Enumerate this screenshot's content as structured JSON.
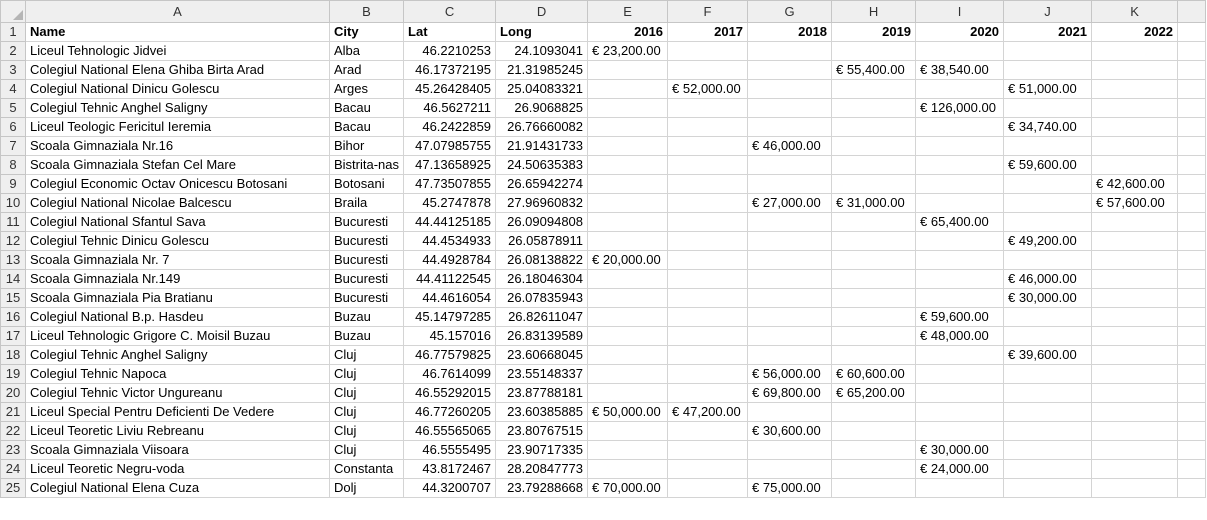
{
  "columns": [
    "A",
    "B",
    "C",
    "D",
    "E",
    "F",
    "G",
    "H",
    "I",
    "J",
    "K"
  ],
  "header_row": {
    "number": "1",
    "cells": [
      "Name",
      "City",
      "Lat",
      "Long",
      "2016",
      "2017",
      "2018",
      "2019",
      "2020",
      "2021",
      "2022"
    ]
  },
  "rows": [
    {
      "n": "2",
      "name": "Liceul Tehnologic Jidvei",
      "city": "Alba",
      "lat": "46.2210253",
      "long": "24.1093041",
      "y2016": "€ 23,200.00",
      "y2017": "",
      "y2018": "",
      "y2019": "",
      "y2020": "",
      "y2021": "",
      "y2022": ""
    },
    {
      "n": "3",
      "name": "Colegiul National Elena Ghiba Birta Arad",
      "city": "Arad",
      "lat": "46.17372195",
      "long": "21.31985245",
      "y2016": "",
      "y2017": "",
      "y2018": "",
      "y2019": "€ 55,400.00",
      "y2020": "€  38,540.00",
      "y2021": "",
      "y2022": ""
    },
    {
      "n": "4",
      "name": "Colegiul National Dinicu Golescu",
      "city": "Arges",
      "lat": "45.26428405",
      "long": "25.04083321",
      "y2016": "",
      "y2017": "€ 52,000.00",
      "y2018": "",
      "y2019": "",
      "y2020": "",
      "y2021": "€  51,000.00",
      "y2022": ""
    },
    {
      "n": "5",
      "name": "Colegiul Tehnic Anghel Saligny",
      "city": "Bacau",
      "lat": "46.5627211",
      "long": "26.9068825",
      "y2016": "",
      "y2017": "",
      "y2018": "",
      "y2019": "",
      "y2020": "€ 126,000.00",
      "y2021": "",
      "y2022": ""
    },
    {
      "n": "6",
      "name": "Liceul Teologic Fericitul Ieremia",
      "city": "Bacau",
      "lat": "46.2422859",
      "long": "26.76660082",
      "y2016": "",
      "y2017": "",
      "y2018": "",
      "y2019": "",
      "y2020": "",
      "y2021": "€  34,740.00",
      "y2022": ""
    },
    {
      "n": "7",
      "name": "Scoala Gimnaziala Nr.16",
      "city": "Bihor",
      "lat": "47.07985755",
      "long": "21.91431733",
      "y2016": "",
      "y2017": "",
      "y2018": "€ 46,000.00",
      "y2019": "",
      "y2020": "",
      "y2021": "",
      "y2022": ""
    },
    {
      "n": "8",
      "name": "Scoala Gimnaziala Stefan Cel Mare",
      "city": "Bistrita-nas",
      "lat": "47.13658925",
      "long": "24.50635383",
      "y2016": "",
      "y2017": "",
      "y2018": "",
      "y2019": "",
      "y2020": "",
      "y2021": "€  59,600.00",
      "y2022": ""
    },
    {
      "n": "9",
      "name": "Colegiul Economic Octav Onicescu Botosani",
      "city": "Botosani",
      "lat": "47.73507855",
      "long": "26.65942274",
      "y2016": "",
      "y2017": "",
      "y2018": "",
      "y2019": "",
      "y2020": "",
      "y2021": "",
      "y2022": "€ 42,600.00"
    },
    {
      "n": "10",
      "name": "Colegiul National Nicolae Balcescu",
      "city": "Braila",
      "lat": "45.2747878",
      "long": "27.96960832",
      "y2016": "",
      "y2017": "",
      "y2018": "€ 27,000.00",
      "y2019": "€ 31,000.00",
      "y2020": "",
      "y2021": "",
      "y2022": "€ 57,600.00"
    },
    {
      "n": "11",
      "name": "Colegiul National Sfantul Sava",
      "city": "Bucuresti",
      "lat": "44.44125185",
      "long": "26.09094808",
      "y2016": "",
      "y2017": "",
      "y2018": "",
      "y2019": "",
      "y2020": "€  65,400.00",
      "y2021": "",
      "y2022": ""
    },
    {
      "n": "12",
      "name": "Colegiul Tehnic Dinicu Golescu",
      "city": "Bucuresti",
      "lat": "44.4534933",
      "long": "26.05878911",
      "y2016": "",
      "y2017": "",
      "y2018": "",
      "y2019": "",
      "y2020": "",
      "y2021": "€  49,200.00",
      "y2022": ""
    },
    {
      "n": "13",
      "name": "Scoala Gimnaziala Nr. 7",
      "city": "Bucuresti",
      "lat": "44.4928784",
      "long": "26.08138822",
      "y2016": "€ 20,000.00",
      "y2017": "",
      "y2018": "",
      "y2019": "",
      "y2020": "",
      "y2021": "",
      "y2022": ""
    },
    {
      "n": "14",
      "name": "Scoala Gimnaziala Nr.149",
      "city": "Bucuresti",
      "lat": "44.41122545",
      "long": "26.18046304",
      "y2016": "",
      "y2017": "",
      "y2018": "",
      "y2019": "",
      "y2020": "",
      "y2021": "€  46,000.00",
      "y2022": ""
    },
    {
      "n": "15",
      "name": "Scoala Gimnaziala Pia Bratianu",
      "city": "Bucuresti",
      "lat": "44.4616054",
      "long": "26.07835943",
      "y2016": "",
      "y2017": "",
      "y2018": "",
      "y2019": "",
      "y2020": "",
      "y2021": "€  30,000.00",
      "y2022": ""
    },
    {
      "n": "16",
      "name": "Colegiul National B.p. Hasdeu",
      "city": "Buzau",
      "lat": "45.14797285",
      "long": "26.82611047",
      "y2016": "",
      "y2017": "",
      "y2018": "",
      "y2019": "",
      "y2020": "€  59,600.00",
      "y2021": "",
      "y2022": ""
    },
    {
      "n": "17",
      "name": "Liceul Tehnologic Grigore C. Moisil Buzau",
      "city": "Buzau",
      "lat": "45.157016",
      "long": "26.83139589",
      "y2016": "",
      "y2017": "",
      "y2018": "",
      "y2019": "",
      "y2020": "€  48,000.00",
      "y2021": "",
      "y2022": ""
    },
    {
      "n": "18",
      "name": "Colegiul Tehnic Anghel Saligny",
      "city": "Cluj",
      "lat": "46.77579825",
      "long": "23.60668045",
      "y2016": "",
      "y2017": "",
      "y2018": "",
      "y2019": "",
      "y2020": "",
      "y2021": "€  39,600.00",
      "y2022": ""
    },
    {
      "n": "19",
      "name": "Colegiul Tehnic Napoca",
      "city": "Cluj",
      "lat": "46.7614099",
      "long": "23.55148337",
      "y2016": "",
      "y2017": "",
      "y2018": "€ 56,000.00",
      "y2019": "€ 60,600.00",
      "y2020": "",
      "y2021": "",
      "y2022": ""
    },
    {
      "n": "20",
      "name": "Colegiul Tehnic Victor Ungureanu",
      "city": "Cluj",
      "lat": "46.55292015",
      "long": "23.87788181",
      "y2016": "",
      "y2017": "",
      "y2018": "€ 69,800.00",
      "y2019": "€ 65,200.00",
      "y2020": "",
      "y2021": "",
      "y2022": ""
    },
    {
      "n": "21",
      "name": "Liceul Special Pentru Deficienti De Vedere",
      "city": "Cluj",
      "lat": "46.77260205",
      "long": "23.60385885",
      "y2016": "€ 50,000.00",
      "y2017": "€ 47,200.00",
      "y2018": "",
      "y2019": "",
      "y2020": "",
      "y2021": "",
      "y2022": ""
    },
    {
      "n": "22",
      "name": "Liceul Teoretic Liviu Rebreanu",
      "city": "Cluj",
      "lat": "46.55565065",
      "long": "23.80767515",
      "y2016": "",
      "y2017": "",
      "y2018": "€ 30,600.00",
      "y2019": "",
      "y2020": "",
      "y2021": "",
      "y2022": ""
    },
    {
      "n": "23",
      "name": "Scoala Gimnaziala Viisoara",
      "city": "Cluj",
      "lat": "46.5555495",
      "long": "23.90717335",
      "y2016": "",
      "y2017": "",
      "y2018": "",
      "y2019": "",
      "y2020": "€  30,000.00",
      "y2021": "",
      "y2022": ""
    },
    {
      "n": "24",
      "name": "Liceul Teoretic Negru-voda",
      "city": "Constanta",
      "lat": "43.8172467",
      "long": "28.20847773",
      "y2016": "",
      "y2017": "",
      "y2018": "",
      "y2019": "",
      "y2020": "€  24,000.00",
      "y2021": "",
      "y2022": ""
    },
    {
      "n": "25",
      "name": "Colegiul National Elena Cuza",
      "city": "Dolj",
      "lat": "44.3200707",
      "long": "23.79288668",
      "y2016": "€ 70,000.00",
      "y2017": "",
      "y2018": "€ 75,000.00",
      "y2019": "",
      "y2020": "",
      "y2021": "",
      "y2022": ""
    }
  ]
}
